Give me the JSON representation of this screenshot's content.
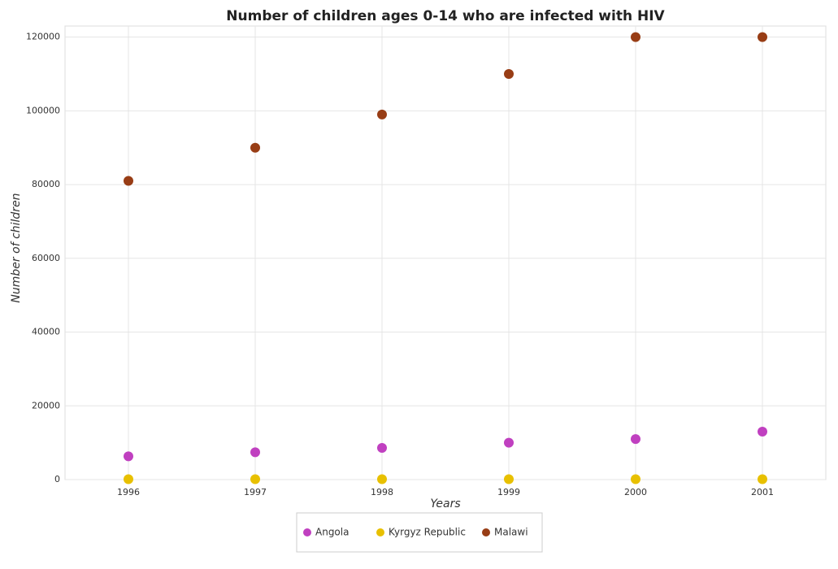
{
  "chart_data": {
    "type": "scatter",
    "title": "Number of children ages 0-14 who are infected with HIV",
    "x_label": "Years",
    "y_label": "Number of children",
    "categories": [
      "1996",
      "1997",
      "1998",
      "1999",
      "2000",
      "2001"
    ],
    "series": [
      {
        "name": "Angola",
        "color": "#c040c0",
        "values": [
          6300,
          7400,
          8600,
          10000,
          11000,
          13000
        ]
      },
      {
        "name": "Kyrgyz Republic",
        "color": "#e8c000",
        "values": [
          100,
          100,
          100,
          100,
          100,
          100
        ]
      },
      {
        "name": "Malawi",
        "color": "#983d15",
        "values": [
          81000,
          90000,
          99000,
          110000,
          120000,
          120000
        ]
      }
    ],
    "ylim": [
      0,
      123000
    ],
    "yticks": [
      0,
      20000,
      40000,
      60000,
      80000,
      100000,
      120000
    ],
    "grid": true
  }
}
